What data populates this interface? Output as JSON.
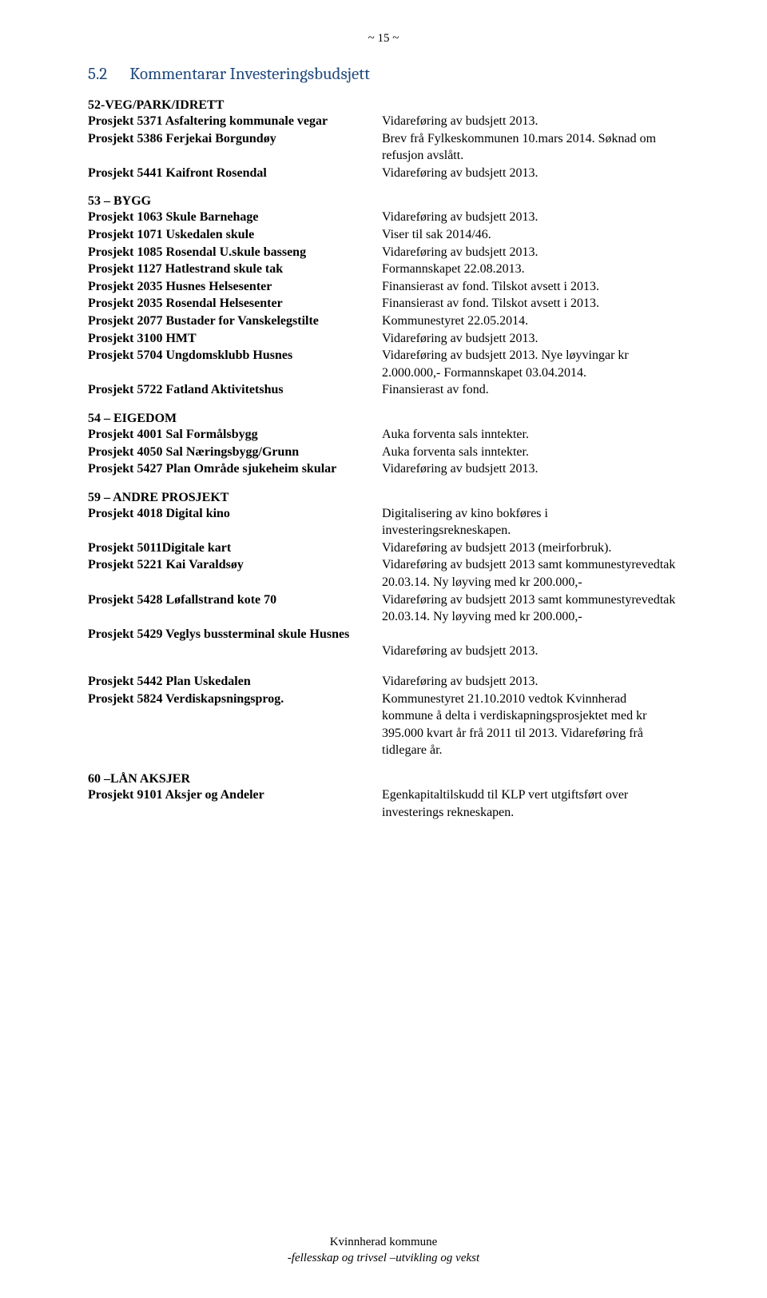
{
  "pageNumber": "~ 15 ~",
  "heading": {
    "num": "5.2",
    "title": "Kommentarar Investeringsbudsjett"
  },
  "blocks": [
    {
      "label": "52-VEG/PARK/IDRETT",
      "entries": [
        {
          "left": "Prosjekt 5371 Asfaltering kommunale vegar",
          "right": "Vidareføring av budsjett 2013."
        },
        {
          "left": "Prosjekt 5386 Ferjekai Borgundøy",
          "right": "Brev frå Fylkeskommunen 10.mars 2014. Søknad om refusjon avslått."
        },
        {
          "left": "Prosjekt 5441 Kaifront Rosendal",
          "right": "Vidareføring av budsjett 2013."
        }
      ]
    },
    {
      "label": "53 – BYGG",
      "entries": [
        {
          "left": "Prosjekt 1063 Skule Barnehage",
          "right": "Vidareføring av budsjett 2013."
        },
        {
          "left": "Prosjekt 1071 Uskedalen skule",
          "right": "Viser til sak 2014/46."
        },
        {
          "left": "Prosjekt 1085 Rosendal U.skule basseng",
          "right": "Vidareføring av budsjett 2013."
        },
        {
          "left": "Prosjekt 1127 Hatlestrand skule tak",
          "right": "Formannskapet 22.08.2013."
        },
        {
          "left": "Prosjekt 2035 Husnes Helsesenter",
          "right": "Finansierast av fond. Tilskot avsett i 2013."
        },
        {
          "left": "Prosjekt 2035 Rosendal Helsesenter",
          "right": "Finansierast av fond. Tilskot avsett i 2013."
        },
        {
          "left": "Prosjekt 2077 Bustader for Vanskelegstilte",
          "right": "Kommunestyret 22.05.2014."
        },
        {
          "left": "Prosjekt 3100 HMT",
          "right": "Vidareføring av budsjett 2013."
        },
        {
          "left": "Prosjekt 5704 Ungdomsklubb Husnes",
          "right": "Vidareføring av budsjett 2013. Nye løyvingar kr 2.000.000,- Formannskapet 03.04.2014."
        },
        {
          "left": "Prosjekt 5722 Fatland Aktivitetshus",
          "right": "Finansierast av fond."
        }
      ]
    },
    {
      "label": "54 – EIGEDOM",
      "entries": [
        {
          "left": "Prosjekt 4001 Sal Formålsbygg",
          "right": "Auka forventa sals inntekter."
        },
        {
          "left": "Prosjekt 4050 Sal Næringsbygg/Grunn",
          "right": "Auka forventa sals inntekter."
        },
        {
          "left": "Prosjekt 5427 Plan Område sjukeheim skular",
          "right": "Vidareføring av budsjett 2013."
        }
      ]
    },
    {
      "label": "59 – ANDRE PROSJEKT",
      "entries": [
        {
          "left": "Prosjekt 4018 Digital kino",
          "right": "Digitalisering av kino bokføres i investeringsrekneskapen."
        },
        {
          "left": "Prosjekt 5011Digitale kart",
          "right": "Vidareføring av budsjett 2013 (meirforbruk)."
        },
        {
          "left": "Prosjekt 5221 Kai Varaldsøy",
          "right": "Vidareføring av budsjett 2013 samt kommunestyrevedtak 20.03.14. Ny løyving med kr 200.000,-"
        },
        {
          "left": "Prosjekt 5428 Løfallstrand kote 70",
          "right": "Vidareføring av budsjett 2013 samt kommunestyrevedtak 20.03.14. Ny løyving med kr 200.000,-"
        },
        {
          "left": "Prosjekt 5429 Veglys bussterminal skule Husnes",
          "right": ""
        },
        {
          "left": "",
          "right": "Vidareføring av budsjett 2013."
        }
      ]
    },
    {
      "label": "",
      "entries": [
        {
          "left": "Prosjekt 5442 Plan Uskedalen",
          "right": "Vidareføring av budsjett 2013."
        },
        {
          "left": "Prosjekt 5824 Verdiskapsningsprog.",
          "right": "Kommunestyret 21.10.2010 vedtok Kvinnherad kommune å delta i verdiskapningsprosjektet  med kr 395.000 kvart år frå 2011 til 2013. Vidareføring frå tidlegare år."
        }
      ]
    },
    {
      "label": "60 –LÅN AKSJER",
      "entries": [
        {
          "left": "Prosjekt 9101 Aksjer og Andeler",
          "right": "Egenkapitaltilskudd til KLP vert utgiftsført over investerings rekneskapen."
        }
      ]
    }
  ],
  "footer": {
    "line1": "Kvinnherad kommune",
    "line2": "-fellesskap og trivsel –utvikling og vekst"
  }
}
